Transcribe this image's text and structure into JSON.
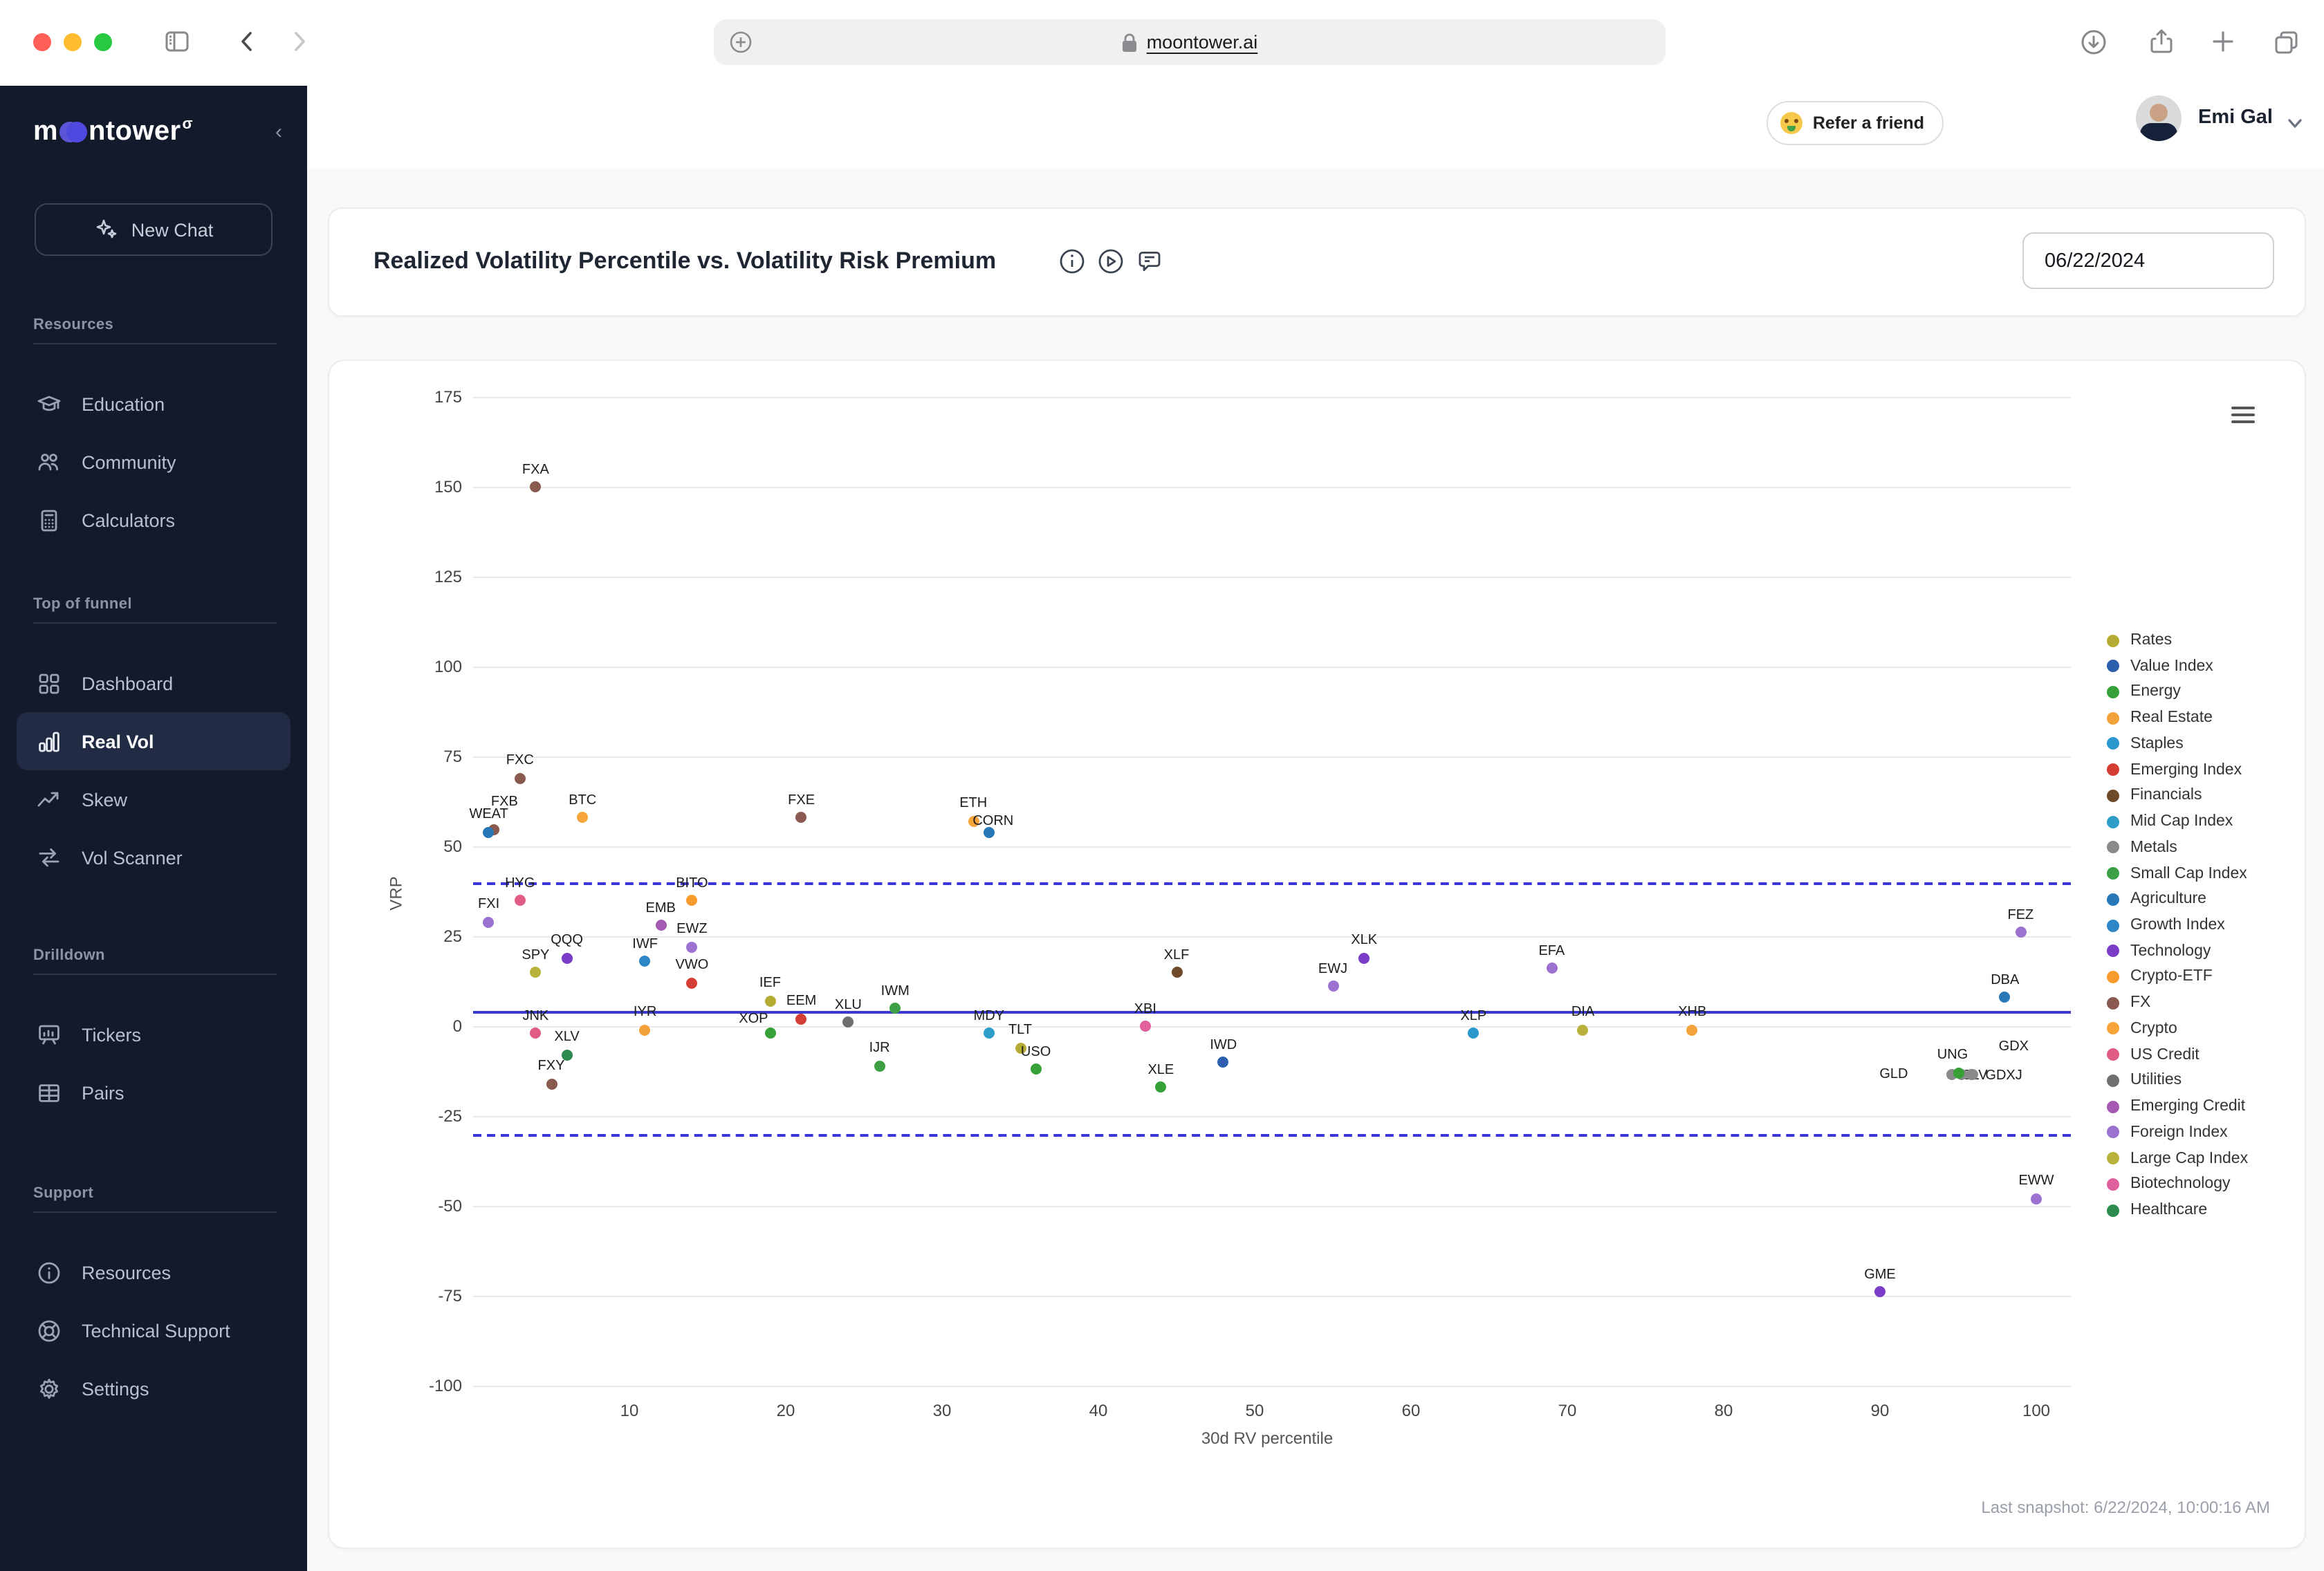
{
  "browser": {
    "url": "moontower.ai",
    "traffic_lights": [
      "#ff5f57",
      "#febc2e",
      "#28c840"
    ]
  },
  "sidebar": {
    "logo": {
      "pre": "m",
      "post": "ntower",
      "sup": "σ"
    },
    "new_chat_label": "New Chat",
    "sections": [
      {
        "label": "Resources",
        "items": [
          {
            "label": "Education",
            "icon": "education-icon"
          },
          {
            "label": "Community",
            "icon": "community-icon"
          },
          {
            "label": "Calculators",
            "icon": "calculators-icon"
          }
        ]
      },
      {
        "label": "Top of funnel",
        "items": [
          {
            "label": "Dashboard",
            "icon": "dashboard-icon"
          },
          {
            "label": "Real Vol",
            "icon": "real-vol-icon",
            "active": true
          },
          {
            "label": "Skew",
            "icon": "skew-icon"
          },
          {
            "label": "Vol Scanner",
            "icon": "vol-scanner-icon"
          }
        ]
      },
      {
        "label": "Drilldown",
        "items": [
          {
            "label": "Tickers",
            "icon": "tickers-icon"
          },
          {
            "label": "Pairs",
            "icon": "pairs-icon"
          }
        ]
      },
      {
        "label": "Support",
        "items": [
          {
            "label": "Resources",
            "icon": "resources-info-icon"
          },
          {
            "label": "Technical Support",
            "icon": "technical-support-icon"
          },
          {
            "label": "Settings",
            "icon": "settings-icon"
          }
        ]
      }
    ]
  },
  "topbar": {
    "refer_label": "Refer a friend",
    "user_name": "Emi Gal"
  },
  "header": {
    "title": "Realized Volatility Percentile vs. Volatility Risk Premium",
    "date_value": "06/22/2024"
  },
  "chart_footer": "Last snapshot: 6/22/2024, 10:00:16 AM",
  "chart_data": {
    "type": "scatter",
    "title": "Realized Volatility Percentile vs. Volatility Risk Premium",
    "xlabel": "30d RV percentile",
    "ylabel": "VRP",
    "xlim": [
      0,
      102
    ],
    "ylim": [
      -100,
      175
    ],
    "x_ticks": [
      10,
      20,
      30,
      40,
      50,
      60,
      70,
      80,
      90,
      100
    ],
    "y_ticks": [
      175,
      150,
      125,
      100,
      75,
      50,
      25,
      0,
      -25,
      -50,
      -75,
      -100
    ],
    "grid": "horizontal",
    "legend_position": "right",
    "reference_lines": {
      "solid": 4.3,
      "dashed": [
        40,
        -30
      ]
    },
    "categories": [
      {
        "name": "Rates",
        "color": "#b5ad33"
      },
      {
        "name": "Value Index",
        "color": "#2b5fae"
      },
      {
        "name": "Energy",
        "color": "#36a139"
      },
      {
        "name": "Real Estate",
        "color": "#f2a23a"
      },
      {
        "name": "Staples",
        "color": "#2a97cd"
      },
      {
        "name": "Emerging Index",
        "color": "#d43d33"
      },
      {
        "name": "Financials",
        "color": "#6e4a2a"
      },
      {
        "name": "Mid Cap Index",
        "color": "#2e9ec9"
      },
      {
        "name": "Metals",
        "color": "#8a8a8a"
      },
      {
        "name": "Small Cap Index",
        "color": "#3da045"
      },
      {
        "name": "Agriculture",
        "color": "#2878b8"
      },
      {
        "name": "Growth Index",
        "color": "#2e86c6"
      },
      {
        "name": "Technology",
        "color": "#7b3dc8"
      },
      {
        "name": "Crypto-ETF",
        "color": "#f79b2e"
      },
      {
        "name": "FX",
        "color": "#8a5a50"
      },
      {
        "name": "Crypto",
        "color": "#f7a43b"
      },
      {
        "name": "US Credit",
        "color": "#e15c85"
      },
      {
        "name": "Utilities",
        "color": "#6f6f6f"
      },
      {
        "name": "Emerging Credit",
        "color": "#a55ab4"
      },
      {
        "name": "Foreign Index",
        "color": "#9b72cf"
      },
      {
        "name": "Large Cap Index",
        "color": "#b9b23a"
      },
      {
        "name": "Biotechnology",
        "color": "#e0609e"
      },
      {
        "name": "Healthcare",
        "color": "#2e8b50"
      }
    ],
    "points": [
      {
        "t": "FXA",
        "x": 4,
        "y": 150,
        "c": "FX"
      },
      {
        "t": "FXC",
        "x": 3,
        "y": 69,
        "c": "FX"
      },
      {
        "t": "FXB",
        "x": 1.3,
        "y": 54.5,
        "c": "FX",
        "lox": 8,
        "loy": -8
      },
      {
        "t": "WEAT",
        "x": 1,
        "y": 54,
        "c": "Agriculture"
      },
      {
        "t": "BTC",
        "x": 7,
        "y": 58,
        "c": "Crypto"
      },
      {
        "t": "FXE",
        "x": 21,
        "y": 58,
        "c": "FX"
      },
      {
        "t": "ETH",
        "x": 32,
        "y": 57,
        "c": "Crypto"
      },
      {
        "t": "CORN",
        "x": 33,
        "y": 54,
        "c": "Agriculture",
        "lox": 3,
        "loy": 5
      },
      {
        "t": "HYG",
        "x": 3,
        "y": 35,
        "c": "US Credit"
      },
      {
        "t": "BITO",
        "x": 14,
        "y": 35,
        "c": "Crypto-ETF"
      },
      {
        "t": "FXI",
        "x": 1,
        "y": 29,
        "c": "Foreign Index"
      },
      {
        "t": "EMB",
        "x": 12,
        "y": 28,
        "c": "Emerging Credit"
      },
      {
        "t": "EWZ",
        "x": 14,
        "y": 22,
        "c": "Foreign Index"
      },
      {
        "t": "QQQ",
        "x": 6,
        "y": 19,
        "c": "Technology"
      },
      {
        "t": "IWF",
        "x": 11,
        "y": 18,
        "c": "Growth Index"
      },
      {
        "t": "SPY",
        "x": 4,
        "y": 15,
        "c": "Large Cap Index"
      },
      {
        "t": "VWO",
        "x": 14,
        "y": 12,
        "c": "Emerging Index"
      },
      {
        "t": "XLF",
        "x": 45,
        "y": 15,
        "c": "Financials"
      },
      {
        "t": "XLK",
        "x": 57,
        "y": 19,
        "c": "Technology"
      },
      {
        "t": "EWJ",
        "x": 55,
        "y": 11,
        "c": "Foreign Index"
      },
      {
        "t": "EFA",
        "x": 69,
        "y": 16,
        "c": "Foreign Index"
      },
      {
        "t": "IEF",
        "x": 19,
        "y": 7,
        "c": "Rates"
      },
      {
        "t": "EEM",
        "x": 21,
        "y": 2,
        "c": "Emerging Index"
      },
      {
        "t": "IWM",
        "x": 27,
        "y": 5,
        "c": "Small Cap Index"
      },
      {
        "t": "XLU",
        "x": 24,
        "y": 1,
        "c": "Utilities"
      },
      {
        "t": "FEZ",
        "x": 99,
        "y": 26,
        "c": "Foreign Index"
      },
      {
        "t": "DBA",
        "x": 98,
        "y": 8,
        "c": "Agriculture"
      },
      {
        "t": "JNK",
        "x": 4,
        "y": -2,
        "c": "US Credit"
      },
      {
        "t": "IYR",
        "x": 11,
        "y": -1,
        "c": "Real Estate"
      },
      {
        "t": "XOP",
        "x": 19,
        "y": -2,
        "c": "Energy",
        "lox": -12,
        "loy": 2
      },
      {
        "t": "MDY",
        "x": 33,
        "y": -2,
        "c": "Mid Cap Index"
      },
      {
        "t": "XBI",
        "x": 43,
        "y": 0,
        "c": "Biotechnology"
      },
      {
        "t": "XLP",
        "x": 64,
        "y": -2,
        "c": "Staples"
      },
      {
        "t": "DIA",
        "x": 71,
        "y": -1,
        "c": "Large Cap Index"
      },
      {
        "t": "XHB",
        "x": 78,
        "y": -1,
        "c": "Real Estate"
      },
      {
        "t": "XLV",
        "x": 6,
        "y": -8,
        "c": "Healthcare"
      },
      {
        "t": "TLT",
        "x": 35,
        "y": -6,
        "c": "Rates"
      },
      {
        "t": "IJR",
        "x": 26,
        "y": -11,
        "c": "Small Cap Index"
      },
      {
        "t": "USO",
        "x": 36,
        "y": -12,
        "c": "Energy"
      },
      {
        "t": "IWD",
        "x": 48,
        "y": -10,
        "c": "Value Index"
      },
      {
        "t": "FXY",
        "x": 5,
        "y": -16,
        "c": "FX"
      },
      {
        "t": "XLE",
        "x": 44,
        "y": -17,
        "c": "Energy"
      },
      {
        "t": "GLD",
        "x": 94.6,
        "y": -13.4,
        "c": "Metals",
        "lox": -42,
        "loy": 13
      },
      {
        "t": "SLV",
        "x": 95.2,
        "y": -13.6,
        "c": "Metals",
        "lox": 10,
        "loy": 13
      },
      {
        "t": "GDXJ",
        "x": 95.8,
        "y": -13.6,
        "c": "Metals",
        "lox": 24,
        "loy": 13
      },
      {
        "t": "GDX",
        "x": 95.9,
        "y": -13.5,
        "c": "Metals",
        "lox": 30,
        "loy": -8
      },
      {
        "t": "UNG",
        "x": 95,
        "y": -13,
        "c": "Energy",
        "lox": -4
      },
      {
        "t": "EWW",
        "x": 100,
        "y": -48,
        "c": "Foreign Index"
      },
      {
        "t": "GME",
        "x": 90,
        "y": -74,
        "c": "Technology"
      }
    ]
  }
}
